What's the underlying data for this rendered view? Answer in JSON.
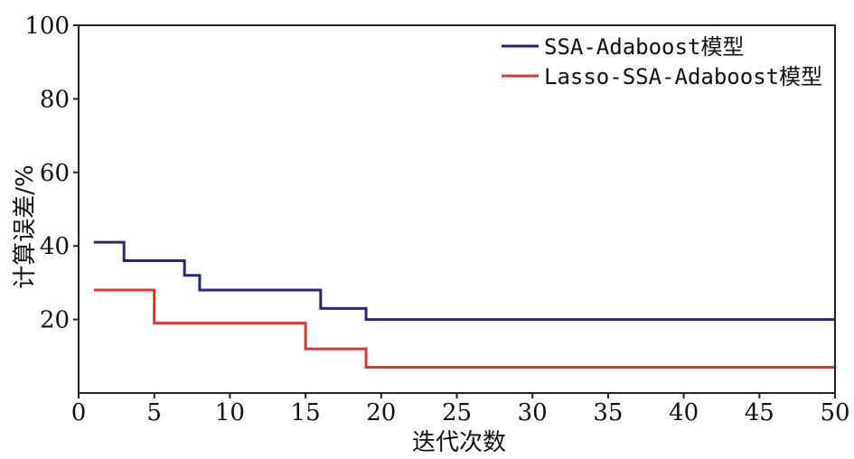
{
  "chart_data": {
    "type": "line",
    "xlabel": "迭代次数",
    "ylabel": "计算误差/%",
    "xlim": [
      0,
      50
    ],
    "ylim": [
      0,
      100
    ],
    "x_ticks": [
      0,
      5,
      10,
      15,
      20,
      25,
      30,
      35,
      40,
      45,
      50
    ],
    "x_tick_labels": [
      "0",
      "5",
      "10",
      "15",
      "20",
      "25",
      "30",
      "35",
      "40",
      "45",
      "50"
    ],
    "y_ticks": [
      20,
      40,
      60,
      80,
      100
    ],
    "y_tick_labels": [
      "20",
      "40",
      "60",
      "80",
      "100"
    ],
    "grid": false,
    "legend_position": "top-right",
    "step": true,
    "series": [
      {
        "name": "SSA-Adaboost模型",
        "color": "#2b2673",
        "x": [
          1,
          3,
          7,
          8,
          16,
          19,
          50
        ],
        "y": [
          41,
          36,
          32,
          28,
          23,
          20,
          20
        ]
      },
      {
        "name": "Lasso-SSA-Adaboost模型",
        "color": "#e0343a",
        "x": [
          1,
          5,
          15,
          19,
          50
        ],
        "y": [
          28,
          19,
          12,
          7,
          7
        ]
      }
    ]
  }
}
